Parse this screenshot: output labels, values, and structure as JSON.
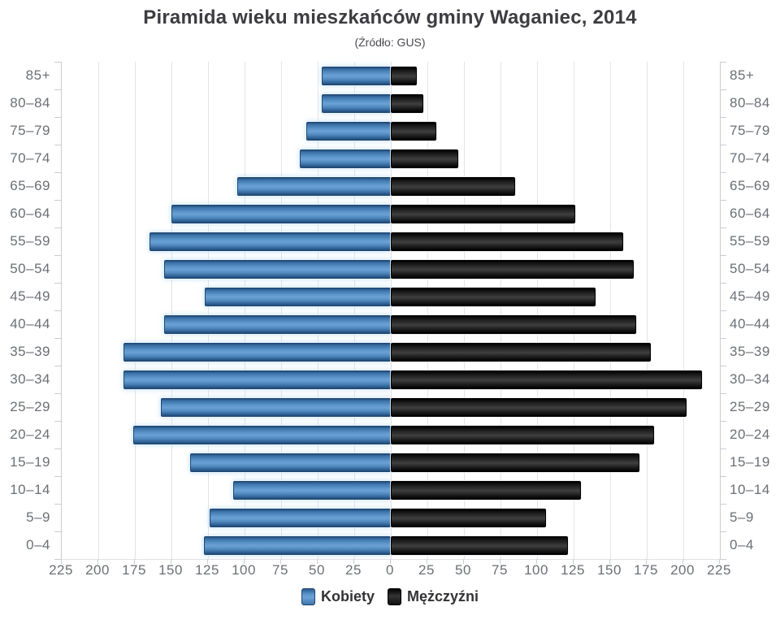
{
  "title": "Piramida wieku mieszkańców gminy Waganiec, 2014",
  "subtitle": "(Źródło: GUS)",
  "legend": {
    "items": [
      {
        "label": "Kobiety",
        "color": "#4e87bd"
      },
      {
        "label": "Mężczyźni",
        "color": "#1c1c1c"
      }
    ]
  },
  "colors": {
    "grid": "#e4e4e9",
    "axis": "#c9ccd4",
    "tick_label": "#6b6f75",
    "title": "#3c3c41",
    "women_bar": "#4e87bd",
    "men_bar": "#1c1c1c"
  },
  "chart_data": {
    "type": "bar",
    "variant": "population-pyramid",
    "title": "Piramida wieku mieszkańców gminy Waganiec, 2014",
    "subtitle": "(Źródło: GUS)",
    "categories": [
      "85+",
      "80–84",
      "75–79",
      "70–74",
      "65–69",
      "60–64",
      "55–59",
      "50–54",
      "45–49",
      "40–44",
      "35–39",
      "30–34",
      "25–29",
      "20–24",
      "15–19",
      "10–14",
      "5–9",
      "0–4"
    ],
    "series": [
      {
        "name": "Kobiety",
        "side": "left",
        "color": "#4e87bd",
        "values": [
          47,
          47,
          58,
          62,
          105,
          150,
          165,
          155,
          127,
          155,
          183,
          183,
          157,
          176,
          137,
          108,
          124,
          128
        ]
      },
      {
        "name": "Mężczyźni",
        "side": "right",
        "color": "#1c1c1c",
        "values": [
          18,
          22,
          31,
          46,
          85,
          126,
          159,
          166,
          140,
          168,
          178,
          213,
          202,
          180,
          170,
          130,
          106,
          121
        ]
      }
    ],
    "xlim_each_side": [
      0,
      225
    ],
    "x_tick_step": 25,
    "x_tick_labels": [
      "225",
      "200",
      "175",
      "150",
      "125",
      "100",
      "75",
      "50",
      "25",
      "0",
      "25",
      "50",
      "75",
      "100",
      "125",
      "150",
      "175",
      "200",
      "225"
    ],
    "grid": true,
    "legend_position": "bottom"
  }
}
